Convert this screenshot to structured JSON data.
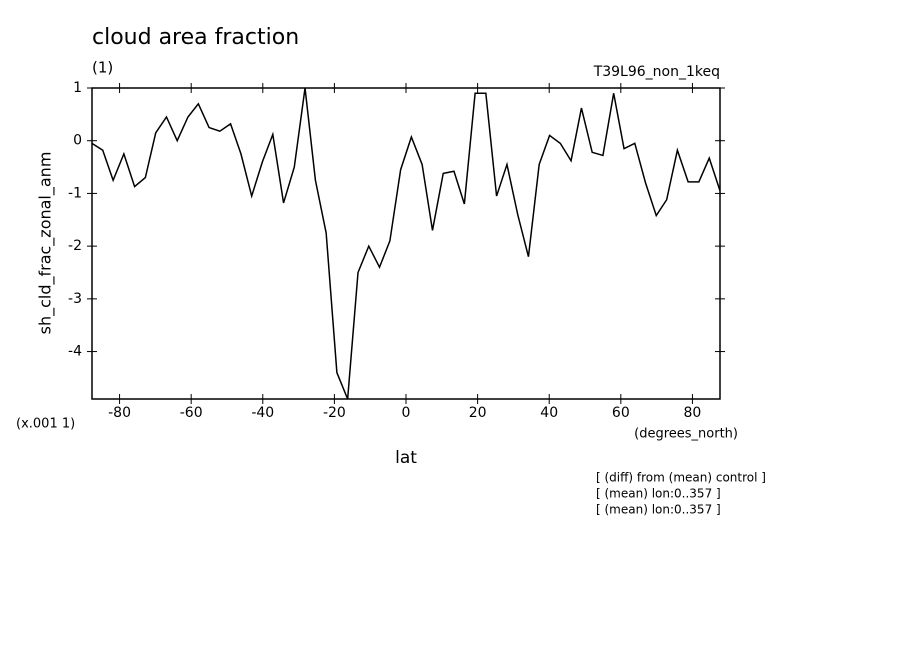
{
  "chart_data": {
    "type": "line",
    "title": "cloud area fraction",
    "subtitle": "(1)",
    "run_label": "T39L96_non_1keq",
    "y_label": "sh_cld_frac_zonal_anm",
    "y_scale_label": "(x.001 1)",
    "x_units": "(degrees_north)",
    "x_label": "lat",
    "annotations": [
      "[ (diff) from (mean) control ]",
      "[ (mean) lon:0..357 ]",
      "[ (mean) lon:0..357 ]"
    ],
    "x": [
      -87.7,
      -84.7,
      -81.8,
      -78.8,
      -75.8,
      -72.8,
      -69.9,
      -66.9,
      -63.9,
      -60.9,
      -58.0,
      -55.0,
      -52.0,
      -49.0,
      -46.1,
      -43.1,
      -40.1,
      -37.2,
      -34.2,
      -31.2,
      -28.2,
      -25.3,
      -22.3,
      -19.3,
      -16.3,
      -13.4,
      -10.4,
      -7.4,
      -4.5,
      -1.5,
      1.5,
      4.5,
      7.4,
      10.4,
      13.4,
      16.3,
      19.3,
      22.3,
      25.3,
      28.2,
      31.2,
      34.2,
      37.2,
      40.1,
      43.1,
      46.1,
      49.0,
      52.0,
      55.0,
      58.0,
      60.9,
      63.9,
      66.9,
      69.9,
      72.8,
      75.8,
      78.8,
      81.8,
      84.7,
      87.7
    ],
    "series": [
      {
        "color": "#000000",
        "values": [
          -0.05,
          -0.18,
          -0.75,
          -0.25,
          -0.87,
          -0.7,
          0.15,
          0.45,
          0.0,
          0.45,
          0.7,
          0.25,
          0.18,
          0.32,
          -0.25,
          -1.05,
          -0.4,
          0.12,
          -1.18,
          -0.5,
          1.0,
          -0.75,
          -1.75,
          -4.4,
          -4.9,
          -2.5,
          -2.0,
          -2.4,
          -1.9,
          -0.55,
          0.07,
          -0.45,
          -1.7,
          -0.62,
          -0.58,
          -1.2,
          0.9,
          0.9,
          -1.05,
          -0.45,
          -1.4,
          -2.2,
          -0.45,
          0.1,
          -0.05,
          -0.38,
          0.62,
          -0.22,
          -0.28,
          0.9,
          -0.15,
          -0.05,
          -0.8,
          -1.42,
          -1.12,
          -0.18,
          -0.78,
          -0.78,
          -0.33,
          -0.95
        ]
      }
    ],
    "xlim": [
      -87.7,
      87.7
    ],
    "ylim": [
      -4.9,
      1.0
    ],
    "xticks": [
      -80,
      -60,
      -40,
      -20,
      0,
      20,
      40,
      60,
      80
    ],
    "yticks": [
      1,
      0,
      -1,
      -2,
      -3,
      -4
    ]
  }
}
